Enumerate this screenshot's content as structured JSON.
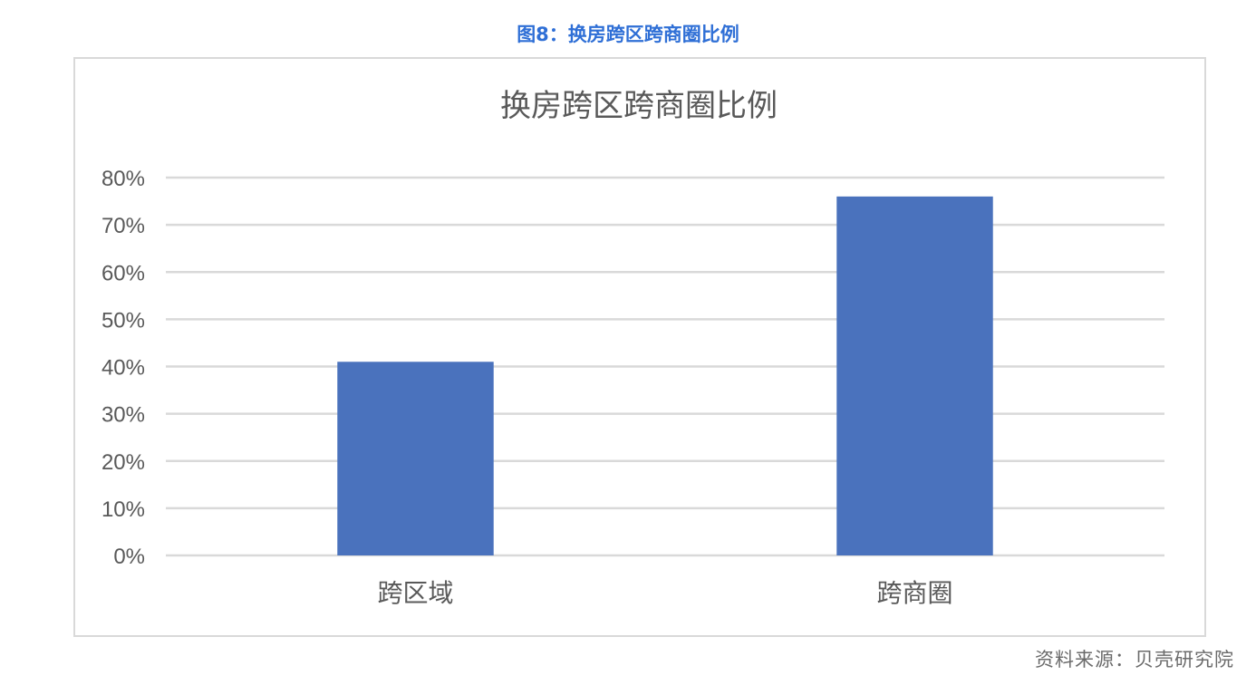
{
  "figure_title": "图8：换房跨区跨商圈比例",
  "source": "资料来源：贝壳研究院",
  "chart_data": {
    "type": "bar",
    "title": "换房跨区跨商圈比例",
    "categories": [
      "跨区域",
      "跨商圈"
    ],
    "values": [
      41,
      76
    ],
    "xlabel": "",
    "ylabel": "",
    "ylim": [
      0,
      80
    ],
    "yticks": [
      "0%",
      "10%",
      "20%",
      "30%",
      "40%",
      "50%",
      "60%",
      "70%",
      "80%"
    ],
    "grid": true,
    "legend": "none",
    "bar_color": "#4a72bd"
  }
}
